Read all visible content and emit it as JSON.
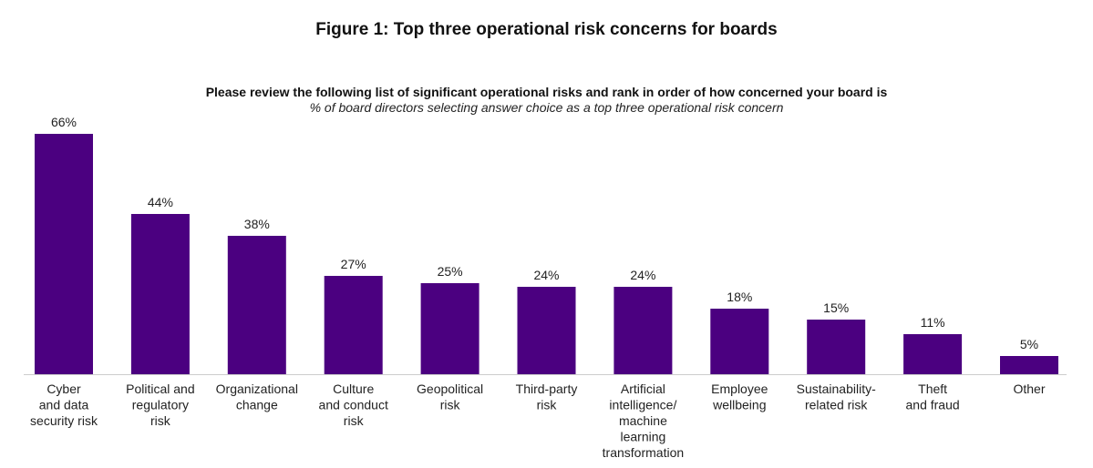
{
  "chart_data": {
    "type": "bar",
    "title": "Figure 1: Top three operational risk concerns for boards",
    "subtitle": "Please review the following list of significant operational risks and rank in order of how concerned your board is",
    "note": "% of board directors selecting answer choice as a top three operational risk concern",
    "categories": [
      [
        "Cyber",
        "and data",
        "security risk"
      ],
      [
        "Political and",
        "regulatory",
        "risk"
      ],
      [
        "Organizational",
        "change"
      ],
      [
        "Culture",
        "and conduct",
        "risk"
      ],
      [
        "Geopolitical",
        "risk"
      ],
      [
        "Third-party",
        "risk"
      ],
      [
        "Artificial",
        "intelligence/",
        "machine",
        "learning",
        "transformation"
      ],
      [
        "Employee",
        "wellbeing"
      ],
      [
        "Sustainability-",
        "related risk"
      ],
      [
        "Theft",
        "and fraud"
      ],
      [
        "Other"
      ]
    ],
    "values": [
      66,
      44,
      38,
      27,
      25,
      24,
      24,
      18,
      15,
      11,
      5
    ],
    "value_labels": [
      "66%",
      "44%",
      "38%",
      "27%",
      "25%",
      "24%",
      "24%",
      "18%",
      "15%",
      "11%",
      "5%"
    ],
    "ylim": [
      0,
      66
    ],
    "grid": false,
    "bar_color": "#4B0080"
  }
}
